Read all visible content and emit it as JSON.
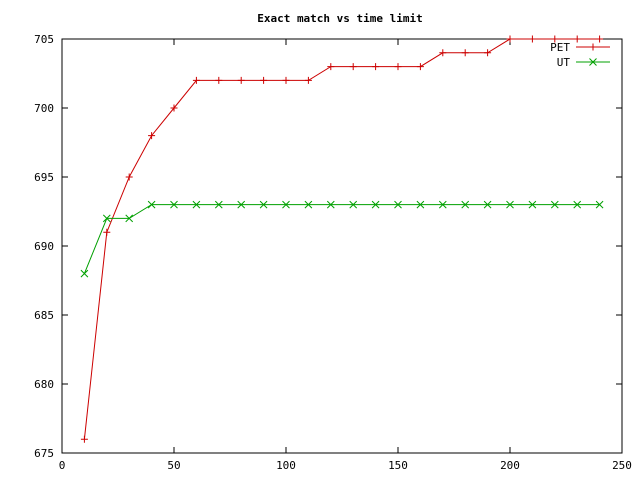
{
  "chart_data": {
    "type": "line",
    "title": "Exact match vs time limit",
    "xlabel": "",
    "ylabel": "",
    "xlim": [
      0,
      250
    ],
    "ylim": [
      675,
      705
    ],
    "xticks": [
      0,
      50,
      100,
      150,
      200,
      250
    ],
    "yticks": [
      675,
      680,
      685,
      690,
      695,
      700,
      705
    ],
    "grid": false,
    "legend_position": "top-right",
    "series": [
      {
        "name": "PET",
        "color": "#cc0000",
        "marker": "plus",
        "x": [
          10,
          20,
          30,
          40,
          50,
          60,
          70,
          80,
          90,
          100,
          110,
          120,
          130,
          140,
          150,
          160,
          170,
          180,
          190,
          200,
          210,
          220,
          230,
          240
        ],
        "y": [
          676,
          691,
          695,
          698,
          700,
          702,
          702,
          702,
          702,
          702,
          702,
          703,
          703,
          703,
          703,
          703,
          704,
          704,
          704,
          705,
          705,
          705,
          705,
          705
        ]
      },
      {
        "name": "UT",
        "color": "#00a000",
        "marker": "cross",
        "x": [
          10,
          20,
          30,
          40,
          50,
          60,
          70,
          80,
          90,
          100,
          110,
          120,
          130,
          140,
          150,
          160,
          170,
          180,
          190,
          200,
          210,
          220,
          230,
          240
        ],
        "y": [
          688,
          692,
          692,
          693,
          693,
          693,
          693,
          693,
          693,
          693,
          693,
          693,
          693,
          693,
          693,
          693,
          693,
          693,
          693,
          693,
          693,
          693,
          693,
          693
        ]
      }
    ]
  }
}
